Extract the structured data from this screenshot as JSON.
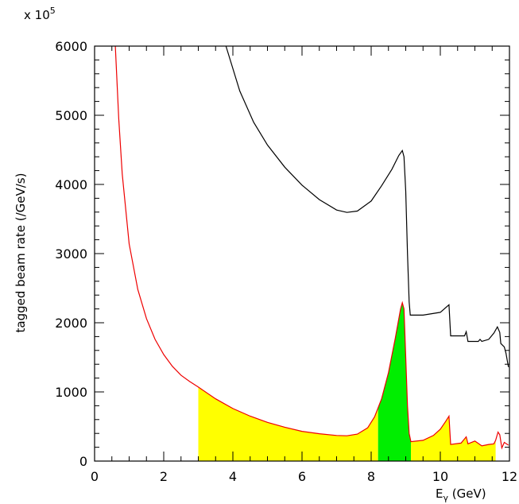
{
  "chart_data": {
    "type": "line",
    "multiplier_label": "x 10",
    "multiplier_exponent": "5",
    "xlabel_main": "E",
    "xlabel_sub": "γ",
    "xlabel_unit": " (GeV)",
    "ylabel": "tagged beam rate (/GeV/s)",
    "xlim": [
      0,
      12
    ],
    "ylim": [
      0,
      6000
    ],
    "x_ticks": [
      0,
      2,
      4,
      6,
      8,
      10,
      12
    ],
    "y_ticks": [
      0,
      1000,
      2000,
      3000,
      4000,
      5000,
      6000
    ],
    "colors": {
      "yellow_fill": "#ffff00",
      "green_fill": "#00ee00",
      "red_curve": "#ee0000",
      "black_curve": "#000000"
    },
    "series": [
      {
        "color": "#000000",
        "points": [
          [
            3.8,
            6000
          ],
          [
            4.2,
            5350
          ],
          [
            4.6,
            4900
          ],
          [
            5.0,
            4570
          ],
          [
            5.5,
            4250
          ],
          [
            6.0,
            3990
          ],
          [
            6.5,
            3780
          ],
          [
            7.0,
            3630
          ],
          [
            7.3,
            3595
          ],
          [
            7.6,
            3615
          ],
          [
            8.0,
            3760
          ],
          [
            8.3,
            3980
          ],
          [
            8.6,
            4220
          ],
          [
            8.8,
            4420
          ],
          [
            8.9,
            4490
          ],
          [
            8.95,
            4400
          ],
          [
            9.0,
            3900
          ],
          [
            9.05,
            3000
          ],
          [
            9.1,
            2300
          ],
          [
            9.13,
            2110
          ],
          [
            9.5,
            2110
          ],
          [
            10.0,
            2150
          ],
          [
            10.25,
            2260
          ],
          [
            10.3,
            1810
          ],
          [
            10.7,
            1810
          ],
          [
            10.75,
            1870
          ],
          [
            10.8,
            1730
          ],
          [
            11.1,
            1730
          ],
          [
            11.15,
            1760
          ],
          [
            11.2,
            1730
          ],
          [
            11.4,
            1760
          ],
          [
            11.55,
            1850
          ],
          [
            11.65,
            1940
          ],
          [
            11.72,
            1860
          ],
          [
            11.75,
            1700
          ],
          [
            11.85,
            1650
          ],
          [
            11.9,
            1560
          ],
          [
            11.97,
            1360
          ]
        ]
      },
      {
        "color": "#ee0000",
        "points": [
          [
            0.6,
            6000
          ],
          [
            0.7,
            4950
          ],
          [
            0.8,
            4150
          ],
          [
            1.0,
            3140
          ],
          [
            1.25,
            2480
          ],
          [
            1.5,
            2060
          ],
          [
            1.75,
            1760
          ],
          [
            2.0,
            1540
          ],
          [
            2.25,
            1370
          ],
          [
            2.5,
            1240
          ],
          [
            2.75,
            1150
          ],
          [
            3.0,
            1070
          ],
          [
            3.5,
            900
          ],
          [
            4.0,
            760
          ],
          [
            4.5,
            650
          ],
          [
            5.0,
            560
          ],
          [
            5.5,
            490
          ],
          [
            6.0,
            430
          ],
          [
            6.5,
            395
          ],
          [
            7.0,
            370
          ],
          [
            7.3,
            365
          ],
          [
            7.6,
            390
          ],
          [
            7.9,
            480
          ],
          [
            8.1,
            640
          ],
          [
            8.3,
            900
          ],
          [
            8.5,
            1280
          ],
          [
            8.7,
            1780
          ],
          [
            8.85,
            2200
          ],
          [
            8.9,
            2290
          ],
          [
            8.95,
            2200
          ],
          [
            9.0,
            1500
          ],
          [
            9.05,
            800
          ],
          [
            9.1,
            400
          ],
          [
            9.15,
            280
          ],
          [
            9.5,
            300
          ],
          [
            9.8,
            370
          ],
          [
            10.0,
            460
          ],
          [
            10.15,
            570
          ],
          [
            10.25,
            650
          ],
          [
            10.3,
            240
          ],
          [
            10.6,
            260
          ],
          [
            10.75,
            350
          ],
          [
            10.8,
            250
          ],
          [
            11.0,
            290
          ],
          [
            11.2,
            220
          ],
          [
            11.4,
            240
          ],
          [
            11.55,
            250
          ],
          [
            11.6,
            300
          ],
          [
            11.67,
            420
          ],
          [
            11.72,
            380
          ],
          [
            11.78,
            190
          ],
          [
            11.85,
            270
          ],
          [
            11.97,
            230
          ]
        ]
      }
    ],
    "filled_regions": [
      {
        "color": "#ffff00",
        "x_range": [
          3.0,
          8.2
        ]
      },
      {
        "color": "#00ee00",
        "x_range": [
          8.2,
          9.15
        ]
      },
      {
        "color": "#ffff00",
        "x_range": [
          9.15,
          11.6
        ]
      }
    ]
  }
}
